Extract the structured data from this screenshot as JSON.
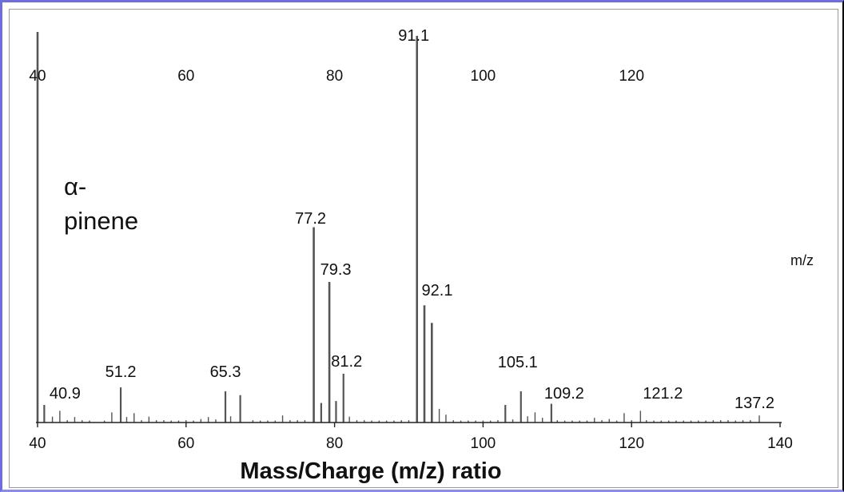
{
  "chart_data": {
    "type": "bar",
    "title": "",
    "xlabel": "Mass/Charge (m/z) ratio",
    "ylabel": "",
    "xlim": [
      40,
      140
    ],
    "ylim": [
      0,
      100
    ],
    "grid": false,
    "compound": "α-pinene",
    "compound_lines": [
      "α-",
      "pinene"
    ],
    "unit_label": "m/z",
    "x_ticks": [
      "40",
      "60",
      "80",
      "100",
      "120",
      "140"
    ],
    "top_ticks": [
      "40",
      "60",
      "80",
      "100",
      "120"
    ],
    "peak_labels": [
      {
        "x": 40.9,
        "text": "40.9"
      },
      {
        "x": 51.2,
        "text": "51.2"
      },
      {
        "x": 65.3,
        "text": "65.3"
      },
      {
        "x": 77.2,
        "text": "77.2"
      },
      {
        "x": 79.3,
        "text": "79.3"
      },
      {
        "x": 81.2,
        "text": "81.2"
      },
      {
        "x": 91.1,
        "text": "91.1"
      },
      {
        "x": 92.1,
        "text": "92.1"
      },
      {
        "x": 105.1,
        "text": "105.1"
      },
      {
        "x": 109.2,
        "text": "109.2"
      },
      {
        "x": 121.2,
        "text": "121.2"
      },
      {
        "x": 137.2,
        "text": "137.2"
      }
    ],
    "peaks": [
      {
        "x": 40.0,
        "y": 100
      },
      {
        "x": 40.9,
        "y": 4.5
      },
      {
        "x": 42.0,
        "y": 1.5
      },
      {
        "x": 43.0,
        "y": 3.0
      },
      {
        "x": 44.0,
        "y": 0.6
      },
      {
        "x": 45.0,
        "y": 1.4
      },
      {
        "x": 46.0,
        "y": 0.6
      },
      {
        "x": 47.0,
        "y": 0.5
      },
      {
        "x": 49.0,
        "y": 0.5
      },
      {
        "x": 50.0,
        "y": 2.6
      },
      {
        "x": 51.2,
        "y": 9.0
      },
      {
        "x": 52.0,
        "y": 1.4
      },
      {
        "x": 53.0,
        "y": 2.4
      },
      {
        "x": 54.0,
        "y": 0.6
      },
      {
        "x": 55.0,
        "y": 1.5
      },
      {
        "x": 56.0,
        "y": 0.6
      },
      {
        "x": 57.0,
        "y": 0.6
      },
      {
        "x": 58.0,
        "y": 0.5
      },
      {
        "x": 59.0,
        "y": 0.5
      },
      {
        "x": 60.0,
        "y": 0.6
      },
      {
        "x": 61.0,
        "y": 0.5
      },
      {
        "x": 62.0,
        "y": 0.9
      },
      {
        "x": 63.0,
        "y": 1.4
      },
      {
        "x": 64.0,
        "y": 0.8
      },
      {
        "x": 65.3,
        "y": 8.0
      },
      {
        "x": 66.0,
        "y": 1.6
      },
      {
        "x": 67.3,
        "y": 7.0
      },
      {
        "x": 69.0,
        "y": 0.6
      },
      {
        "x": 70.0,
        "y": 0.5
      },
      {
        "x": 71.0,
        "y": 0.5
      },
      {
        "x": 72.0,
        "y": 0.5
      },
      {
        "x": 73.0,
        "y": 1.8
      },
      {
        "x": 74.0,
        "y": 0.6
      },
      {
        "x": 75.0,
        "y": 0.6
      },
      {
        "x": 76.0,
        "y": 0.6
      },
      {
        "x": 77.2,
        "y": 50.0
      },
      {
        "x": 78.2,
        "y": 5.0
      },
      {
        "x": 79.3,
        "y": 36.0
      },
      {
        "x": 80.2,
        "y": 5.5
      },
      {
        "x": 81.2,
        "y": 12.5
      },
      {
        "x": 82.0,
        "y": 1.5
      },
      {
        "x": 83.0,
        "y": 0.6
      },
      {
        "x": 84.0,
        "y": 0.6
      },
      {
        "x": 85.0,
        "y": 0.5
      },
      {
        "x": 86.0,
        "y": 0.5
      },
      {
        "x": 87.0,
        "y": 0.5
      },
      {
        "x": 88.0,
        "y": 0.5
      },
      {
        "x": 89.0,
        "y": 0.6
      },
      {
        "x": 90.0,
        "y": 0.6
      },
      {
        "x": 91.1,
        "y": 99.0
      },
      {
        "x": 92.1,
        "y": 30.0
      },
      {
        "x": 93.1,
        "y": 25.5
      },
      {
        "x": 94.1,
        "y": 3.5
      },
      {
        "x": 95.0,
        "y": 2.0
      },
      {
        "x": 96.0,
        "y": 0.6
      },
      {
        "x": 97.0,
        "y": 0.5
      },
      {
        "x": 98.0,
        "y": 0.5
      },
      {
        "x": 99.0,
        "y": 0.5
      },
      {
        "x": 100.0,
        "y": 0.5
      },
      {
        "x": 101.0,
        "y": 0.5
      },
      {
        "x": 102.0,
        "y": 0.6
      },
      {
        "x": 103.0,
        "y": 4.5
      },
      {
        "x": 104.0,
        "y": 0.8
      },
      {
        "x": 105.1,
        "y": 8.0
      },
      {
        "x": 106.0,
        "y": 1.6
      },
      {
        "x": 107.0,
        "y": 2.6
      },
      {
        "x": 108.0,
        "y": 1.2
      },
      {
        "x": 109.2,
        "y": 4.8
      },
      {
        "x": 110.0,
        "y": 0.6
      },
      {
        "x": 111.0,
        "y": 0.5
      },
      {
        "x": 112.0,
        "y": 0.5
      },
      {
        "x": 113.0,
        "y": 0.5
      },
      {
        "x": 114.0,
        "y": 0.5
      },
      {
        "x": 115.0,
        "y": 1.2
      },
      {
        "x": 116.0,
        "y": 0.6
      },
      {
        "x": 117.0,
        "y": 0.9
      },
      {
        "x": 118.0,
        "y": 0.5
      },
      {
        "x": 119.0,
        "y": 2.4
      },
      {
        "x": 120.0,
        "y": 0.6
      },
      {
        "x": 121.2,
        "y": 3.0
      },
      {
        "x": 122.0,
        "y": 0.6
      },
      {
        "x": 123.0,
        "y": 0.5
      },
      {
        "x": 124.0,
        "y": 0.5
      },
      {
        "x": 125.0,
        "y": 0.5
      },
      {
        "x": 126.0,
        "y": 0.5
      },
      {
        "x": 127.0,
        "y": 0.5
      },
      {
        "x": 128.0,
        "y": 0.5
      },
      {
        "x": 129.0,
        "y": 0.5
      },
      {
        "x": 130.0,
        "y": 0.5
      },
      {
        "x": 131.0,
        "y": 0.6
      },
      {
        "x": 132.0,
        "y": 0.6
      },
      {
        "x": 133.0,
        "y": 0.6
      },
      {
        "x": 134.0,
        "y": 0.5
      },
      {
        "x": 135.0,
        "y": 0.6
      },
      {
        "x": 136.0,
        "y": 0.6
      },
      {
        "x": 137.2,
        "y": 1.8
      }
    ],
    "colors": {
      "peak": "#555555",
      "axis": "#222222",
      "text": "#111111",
      "frame": "#6d6de0"
    }
  }
}
